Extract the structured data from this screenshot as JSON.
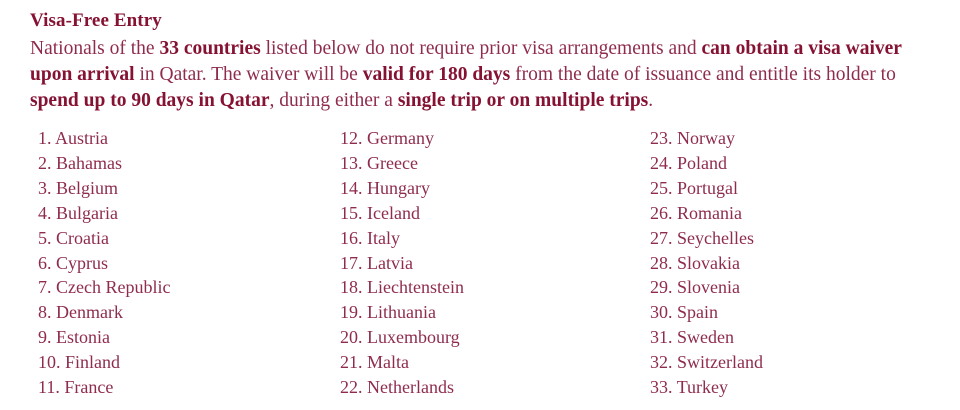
{
  "page": {
    "background": "#ffffff",
    "text_color": "#8f2c4e",
    "bold_color": "#851233"
  },
  "header": {
    "title": "Visa-Free Entry"
  },
  "intro": {
    "full_text": "Nationals of the 33 countries listed below do not require prior visa arrangements and can obtain a visa waiver upon arrival in Qatar. The waiver will be valid for 180 days from the date of issuance and entitle its holder to spend up to 90 days in Qatar, during either a single trip or on multiple trips.",
    "lines": [
      [
        {
          "text": "Nationals of the ",
          "bold": false
        },
        {
          "text": "33 countries",
          "bold": true
        },
        {
          "text": " listed below do not require prior visa arrangements and ",
          "bold": false
        },
        {
          "text": "can obtain a visa waiver",
          "bold": true
        }
      ],
      [
        {
          "text": "upon arrival",
          "bold": true
        },
        {
          "text": " in Qatar. The waiver will be ",
          "bold": false
        },
        {
          "text": "valid for 180 days",
          "bold": true
        },
        {
          "text": " from the date of issuance and entitle its holder to",
          "bold": false
        }
      ],
      [
        {
          "text": "spend up to 90 days in Qatar",
          "bold": true
        },
        {
          "text": ", during either a ",
          "bold": false
        },
        {
          "text": "single trip or on multiple trips",
          "bold": true
        },
        {
          "text": ".",
          "bold": false
        }
      ]
    ]
  },
  "country_list": {
    "total_countries": 33,
    "columns": [
      {
        "items": [
          {
            "number": "1.",
            "name": "Austria"
          },
          {
            "number": "2.",
            "name": "Bahamas"
          },
          {
            "number": "3.",
            "name": "Belgium"
          },
          {
            "number": "4.",
            "name": "Bulgaria"
          },
          {
            "number": "5.",
            "name": "Croatia"
          },
          {
            "number": "6.",
            "name": "Cyprus"
          },
          {
            "number": "7.",
            "name": "Czech Republic"
          },
          {
            "number": "8.",
            "name": "Denmark"
          },
          {
            "number": "9.",
            "name": "Estonia"
          },
          {
            "number": "10.",
            "name": "Finland"
          },
          {
            "number": "11.",
            "name": "France"
          }
        ]
      },
      {
        "items": [
          {
            "number": "12.",
            "name": "Germany"
          },
          {
            "number": "13.",
            "name": "Greece"
          },
          {
            "number": "14.",
            "name": "Hungary"
          },
          {
            "number": "15.",
            "name": "Iceland"
          },
          {
            "number": "16.",
            "name": "Italy"
          },
          {
            "number": "17.",
            "name": "Latvia"
          },
          {
            "number": "18.",
            "name": "Liechtenstein"
          },
          {
            "number": "19.",
            "name": "Lithuania"
          },
          {
            "number": "20.",
            "name": "Luxembourg"
          },
          {
            "number": "21.",
            "name": "Malta"
          },
          {
            "number": "22.",
            "name": "Netherlands"
          }
        ]
      },
      {
        "items": [
          {
            "number": "23.",
            "name": "Norway"
          },
          {
            "number": "24.",
            "name": "Poland"
          },
          {
            "number": "25.",
            "name": "Portugal"
          },
          {
            "number": "26.",
            "name": "Romania"
          },
          {
            "number": "27.",
            "name": "Seychelles"
          },
          {
            "number": "28.",
            "name": "Slovakia"
          },
          {
            "number": "29.",
            "name": "Slovenia"
          },
          {
            "number": "30.",
            "name": "Spain"
          },
          {
            "number": "31.",
            "name": "Sweden"
          },
          {
            "number": "32.",
            "name": "Switzerland"
          },
          {
            "number": "33.",
            "name": "Turkey"
          }
        ]
      }
    ]
  }
}
